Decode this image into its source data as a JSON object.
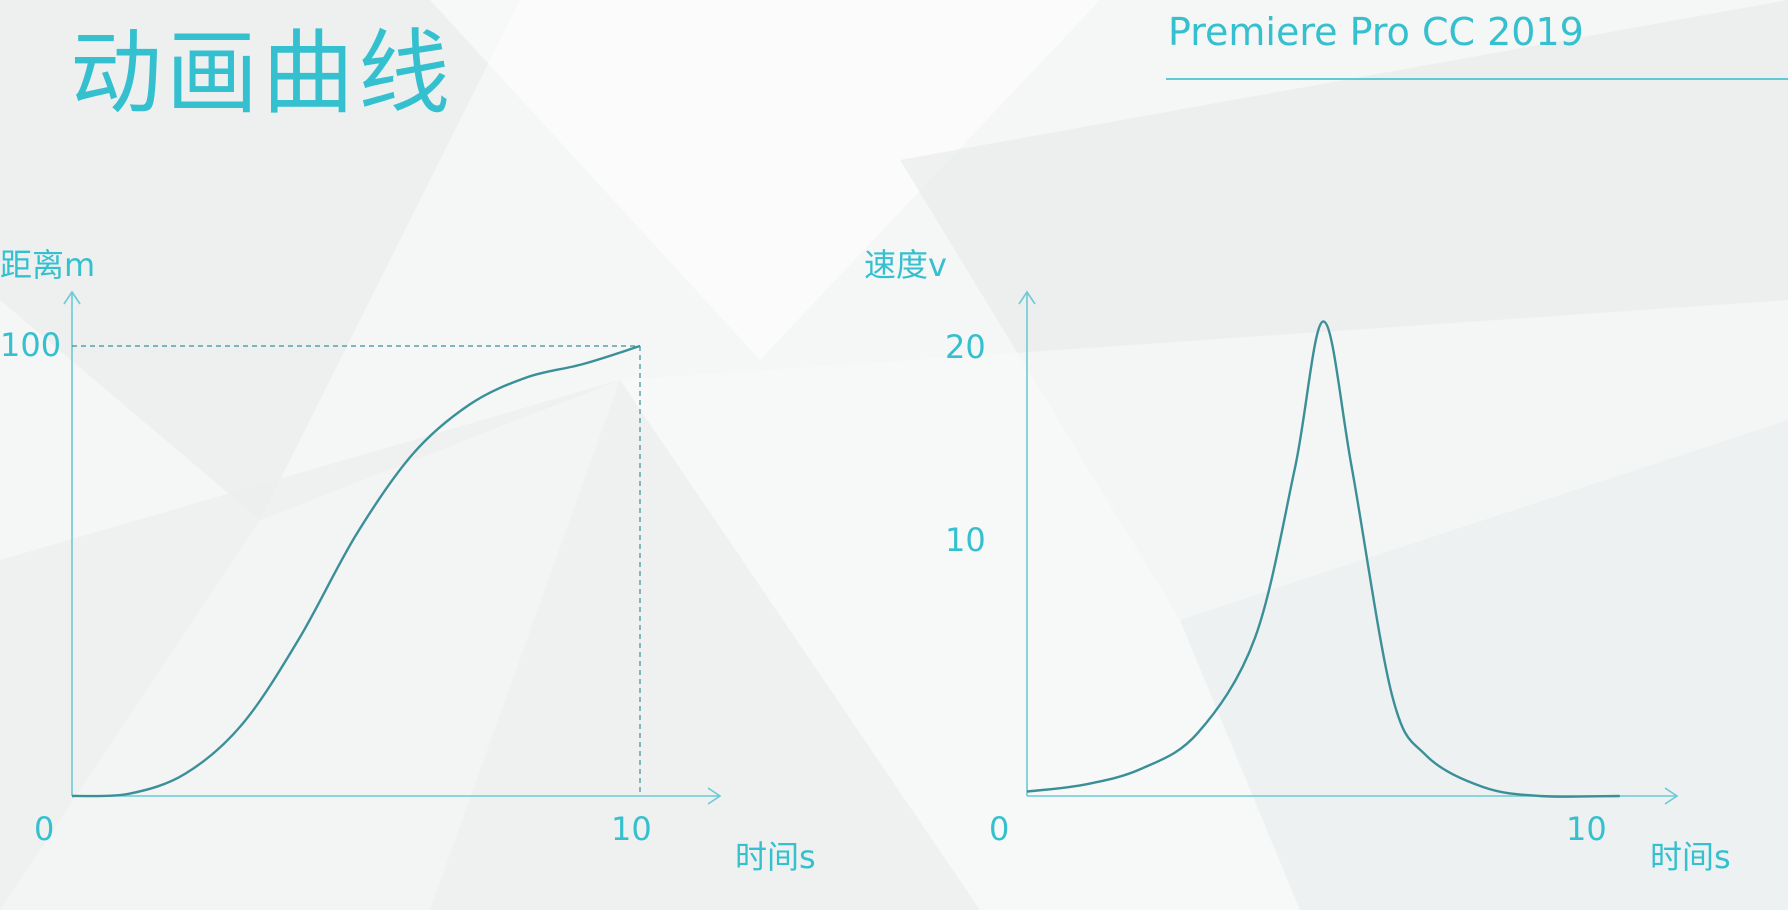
{
  "slide": {
    "title": "动画曲线",
    "brand": "Premiere Pro CC 2019"
  },
  "colors": {
    "accent": "#35c0cf",
    "curve": "#3a8f98",
    "background": "#f5f6f6"
  },
  "chart_data": [
    {
      "type": "line",
      "ylabel": "距离m",
      "xlabel": "时间s",
      "xlim": [
        0,
        10
      ],
      "ylim": [
        0,
        100
      ],
      "xticks": [
        "0",
        "10"
      ],
      "yticks": [
        "100"
      ],
      "grid": false,
      "guides": [
        {
          "x": 10,
          "y": 100
        }
      ],
      "series": [
        {
          "x": [
            0,
            1,
            2,
            3,
            4,
            5,
            6,
            7,
            8,
            9,
            10
          ],
          "y": [
            0,
            0.5,
            5,
            16,
            35,
            58,
            76,
            87,
            93,
            96,
            100
          ]
        }
      ]
    },
    {
      "type": "line",
      "ylabel": "速度v",
      "xlabel": "时间s",
      "xlim": [
        0,
        10
      ],
      "ylim": [
        0,
        20
      ],
      "xticks": [
        "0",
        "10"
      ],
      "yticks": [
        "10",
        "20"
      ],
      "grid": false,
      "series": [
        {
          "x": [
            0,
            1,
            2,
            3,
            4,
            4.7,
            5.2,
            5.7,
            6.4,
            7,
            8,
            9,
            10.4
          ],
          "y": [
            0.2,
            0.5,
            1.2,
            2.8,
            7,
            14.5,
            21,
            14.5,
            4.5,
            1.8,
            0.4,
            0,
            0
          ]
        }
      ]
    }
  ]
}
